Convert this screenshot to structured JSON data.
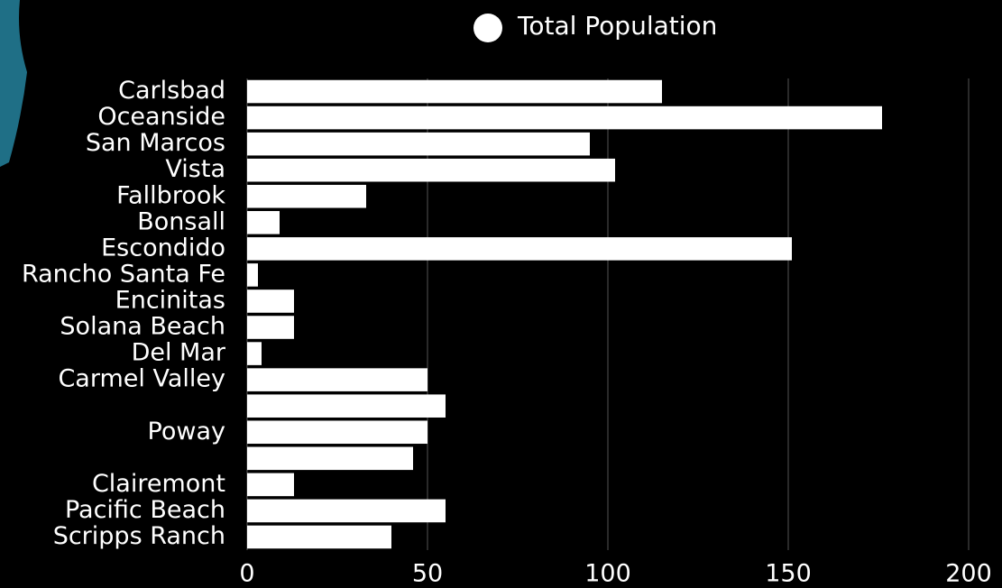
{
  "chart_data": {
    "type": "bar",
    "orientation": "horizontal",
    "categories": [
      "Carlsbad",
      "Oceanside",
      "San Marcos",
      "Vista",
      "Fallbrook",
      "Bonsall",
      "Escondido",
      "Rancho Santa Fe",
      "Encinitas",
      "Solana Beach",
      "Del Mar",
      "Carmel Valley",
      null,
      "Poway",
      null,
      "Clairemont",
      "Pacific Beach",
      "Scripps Ranch"
    ],
    "series": [
      {
        "name": "Total Population",
        "color": "#ffffff",
        "values": [
          115,
          176,
          95,
          102,
          33,
          9,
          151,
          3,
          13,
          13,
          4,
          50,
          55,
          50,
          46,
          13,
          55,
          40
        ]
      }
    ],
    "xlim": [
      0,
      200
    ],
    "xticks": [
      0,
      50,
      100,
      150,
      200
    ],
    "grid": true,
    "legend": "top"
  }
}
